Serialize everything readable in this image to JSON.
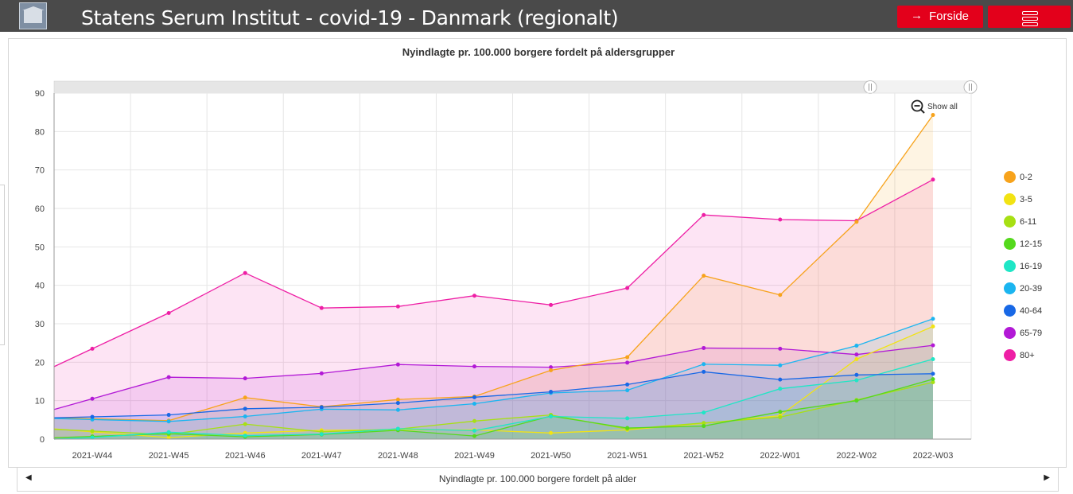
{
  "header": {
    "title": "Statens Serum Institut - covid-19 - Danmark (regionalt)",
    "forside_label": "Forside",
    "logo_icon": "building-logo-icon",
    "menu_icon": "hamburger-menu-icon",
    "accent_color": "#e3001b",
    "bar_color": "#4a4a4a"
  },
  "chart_controls": {
    "show_all_label": "Show all",
    "zoom_icon": "zoom-out-icon"
  },
  "footer": {
    "label": "Nyindlagte pr. 100.000 borgere fordelt på alder"
  },
  "chart_data": {
    "type": "area",
    "title": "Nyindlagte pr. 100.000 borgere fordelt på aldersgrupper",
    "xlabel": "",
    "ylabel": "",
    "ylim": [
      0,
      90
    ],
    "yticks": [
      0,
      10,
      20,
      30,
      40,
      50,
      60,
      70,
      80,
      90
    ],
    "grid": true,
    "legend_position": "right",
    "categories": [
      "2021-W44",
      "2021-W45",
      "2021-W46",
      "2021-W47",
      "2021-W48",
      "2021-W49",
      "2021-W50",
      "2021-W51",
      "2021-W52",
      "2022-W01",
      "2022-W02",
      "2022-W03"
    ],
    "series": [
      {
        "name": "80+",
        "color": "#ee1fa5",
        "values": [
          23.5,
          32.8,
          43.2,
          34.1,
          34.5,
          37.3,
          34.9,
          39.3,
          58.3,
          57.1,
          56.8,
          67.5
        ]
      },
      {
        "name": "65-79",
        "color": "#b219d6",
        "values": [
          10.5,
          16.1,
          15.8,
          17.1,
          19.4,
          18.9,
          18.7,
          19.9,
          23.7,
          23.5,
          22.0,
          24.4
        ]
      },
      {
        "name": "0-2",
        "color": "#f7a31c",
        "values": [
          5.3,
          4.8,
          10.8,
          8.4,
          10.3,
          11.1,
          17.9,
          21.3,
          42.5,
          37.5,
          56.5,
          84.3
        ]
      },
      {
        "name": "3-5",
        "color": "#f2e313",
        "values": [
          1.9,
          0.4,
          1.6,
          2.3,
          2.4,
          2.4,
          1.6,
          2.4,
          4.1,
          6.1,
          20.8,
          29.3
        ]
      },
      {
        "name": "6-11",
        "color": "#a7e013",
        "values": [
          2.1,
          1.2,
          3.9,
          1.9,
          2.6,
          4.7,
          6.3,
          2.6,
          4.2,
          5.7,
          10.2,
          14.8
        ]
      },
      {
        "name": "12-15",
        "color": "#55d91d",
        "values": [
          0.7,
          1.4,
          0.6,
          1.2,
          2.3,
          0.8,
          6.0,
          2.9,
          3.4,
          7.1,
          10.0,
          15.6
        ]
      },
      {
        "name": "16-19",
        "color": "#1fe6c6",
        "values": [
          0.4,
          1.8,
          0.9,
          1.3,
          2.7,
          2.2,
          5.9,
          5.4,
          6.9,
          13.1,
          15.3,
          20.8
        ]
      },
      {
        "name": "20-39",
        "color": "#1bb5f0",
        "values": [
          5.1,
          4.6,
          5.9,
          7.8,
          7.6,
          9.2,
          12.0,
          12.7,
          19.5,
          19.2,
          24.3,
          31.3
        ]
      },
      {
        "name": "40-64",
        "color": "#1868e6",
        "values": [
          5.8,
          6.3,
          7.9,
          8.3,
          9.4,
          10.9,
          12.3,
          14.2,
          17.5,
          15.5,
          16.7,
          17.0
        ]
      }
    ],
    "legend": [
      "0-2",
      "3-5",
      "6-11",
      "12-15",
      "16-19",
      "20-39",
      "40-64",
      "65-79",
      "80+"
    ],
    "legend_colors": [
      "#f7a31c",
      "#f2e313",
      "#a7e013",
      "#55d91d",
      "#1fe6c6",
      "#1bb5f0",
      "#1868e6",
      "#b219d6",
      "#ee1fa5"
    ]
  }
}
